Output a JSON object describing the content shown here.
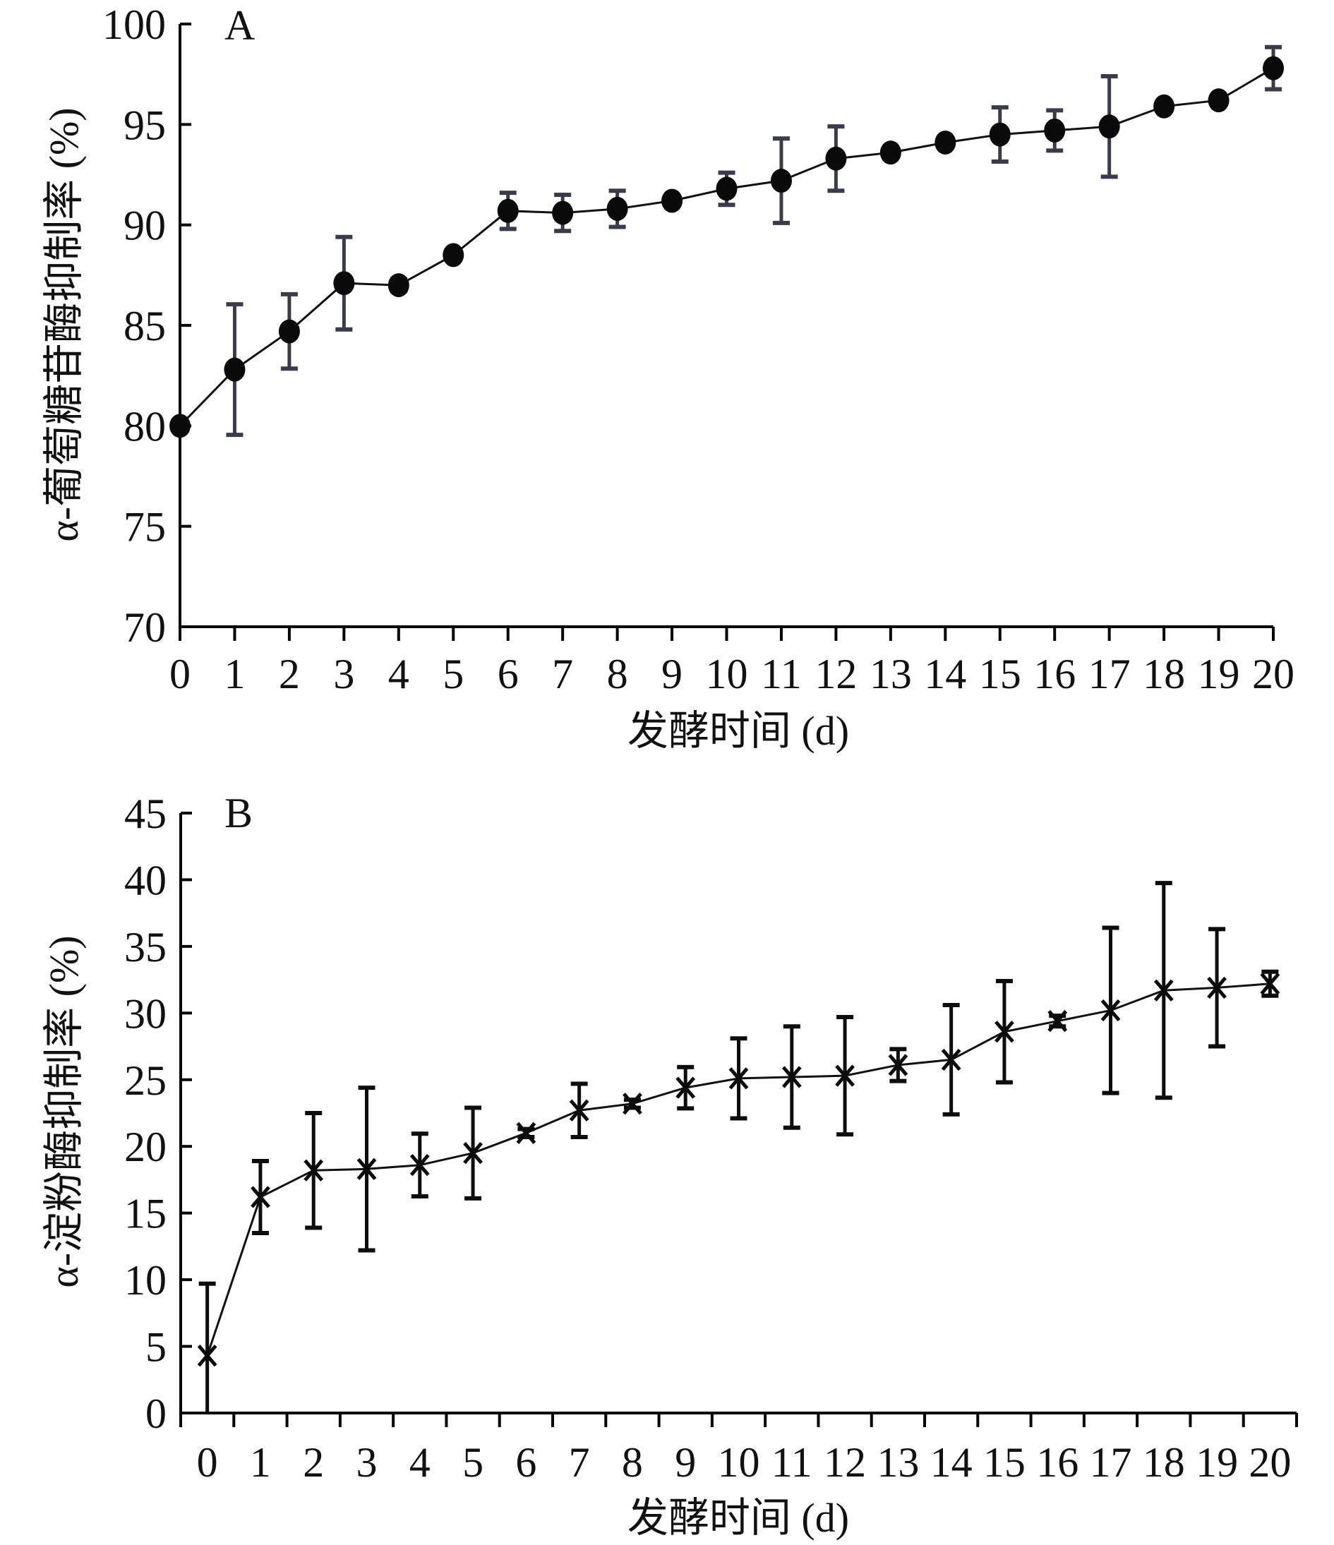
{
  "chart_data": [
    {
      "type": "line",
      "panel_label": "A",
      "title": "",
      "xlabel": "发酵时间 (d)",
      "ylabel": "α-葡萄糖苷酶抑制率 (%)",
      "ylim": [
        70,
        100
      ],
      "yticks": [
        70,
        75,
        80,
        85,
        90,
        95,
        100
      ],
      "xlim": [
        0,
        20
      ],
      "x_tick_placement": "on-tick",
      "categories": [
        "0",
        "1",
        "2",
        "3",
        "4",
        "5",
        "6",
        "7",
        "8",
        "9",
        "10",
        "11",
        "12",
        "13",
        "14",
        "15",
        "16",
        "17",
        "18",
        "19",
        "20"
      ],
      "grid": false,
      "legend": "none",
      "marker": "filled-circle",
      "series": [
        {
          "name": "α-葡萄糖苷酶抑制率",
          "x": [
            0,
            1,
            2,
            3,
            4,
            5,
            6,
            7,
            8,
            9,
            10,
            11,
            12,
            13,
            14,
            15,
            16,
            17,
            18,
            19,
            20
          ],
          "values": [
            80.0,
            82.8,
            84.7,
            87.1,
            87.0,
            88.5,
            90.7,
            90.6,
            90.8,
            91.2,
            91.8,
            92.2,
            93.3,
            93.6,
            94.1,
            94.5,
            94.7,
            94.9,
            95.9,
            96.2,
            97.8
          ],
          "error": [
            0.1,
            3.25,
            1.85,
            2.3,
            0.3,
            0.2,
            0.9,
            0.9,
            0.9,
            0.2,
            0.8,
            2.1,
            1.6,
            0.2,
            0.2,
            1.35,
            1.0,
            2.5,
            0.2,
            0.2,
            1.05
          ]
        }
      ]
    },
    {
      "type": "line",
      "panel_label": "B",
      "title": "",
      "xlabel": "发酵时间 (d)",
      "ylabel": "α-淀粉酶抑制率 (%)",
      "ylim": [
        0,
        45
      ],
      "yticks": [
        0,
        5,
        10,
        15,
        20,
        25,
        30,
        35,
        40,
        45
      ],
      "x_tick_placement": "between-ticks",
      "categories": [
        "0",
        "1",
        "2",
        "3",
        "4",
        "5",
        "6",
        "7",
        "8",
        "9",
        "10",
        "11",
        "12",
        "13",
        "14",
        "15",
        "16",
        "17",
        "18",
        "19",
        "20"
      ],
      "grid": false,
      "legend": "none",
      "marker": "asterisk",
      "series": [
        {
          "name": "α-淀粉酶抑制率",
          "x": [
            0,
            1,
            2,
            3,
            4,
            5,
            6,
            7,
            8,
            9,
            10,
            11,
            12,
            13,
            14,
            15,
            16,
            17,
            18,
            19,
            20
          ],
          "values": [
            4.3,
            16.2,
            18.2,
            18.3,
            18.6,
            19.5,
            21.0,
            22.7,
            23.2,
            24.4,
            25.1,
            25.2,
            25.3,
            26.1,
            26.5,
            28.6,
            29.4,
            30.2,
            31.7,
            31.9,
            32.2
          ],
          "error": [
            5.4,
            2.7,
            4.3,
            6.1,
            2.35,
            3.4,
            0.3,
            2.0,
            0.3,
            1.55,
            3.0,
            3.8,
            4.4,
            1.2,
            4.1,
            3.8,
            0.4,
            6.2,
            8.05,
            4.4,
            0.9
          ]
        }
      ]
    }
  ]
}
